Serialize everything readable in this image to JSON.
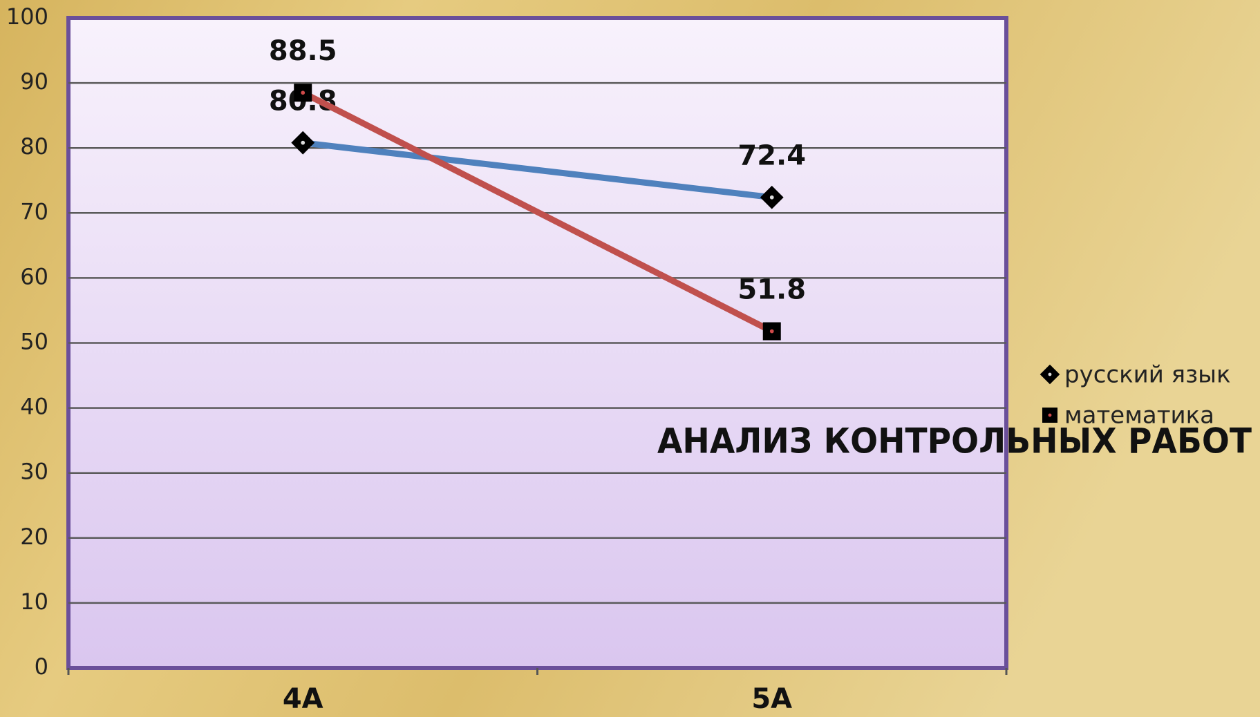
{
  "chart_data": {
    "type": "line",
    "title": "АНАЛИЗ КОНТРОЛЬНЫХ РАБОТ",
    "categories": [
      "4A",
      "5A"
    ],
    "series": [
      {
        "name": "русский язык",
        "color": "#4f81bd",
        "marker": "diamond",
        "values": [
          80.8,
          72.4
        ]
      },
      {
        "name": "математика",
        "color": "#c0504d",
        "marker": "square",
        "values": [
          88.5,
          51.8
        ]
      }
    ],
    "ylim": [
      0,
      100
    ],
    "yticks": [
      0,
      10,
      20,
      30,
      40,
      50,
      60,
      70,
      80,
      90,
      100
    ],
    "grid": true,
    "legend": "right"
  }
}
